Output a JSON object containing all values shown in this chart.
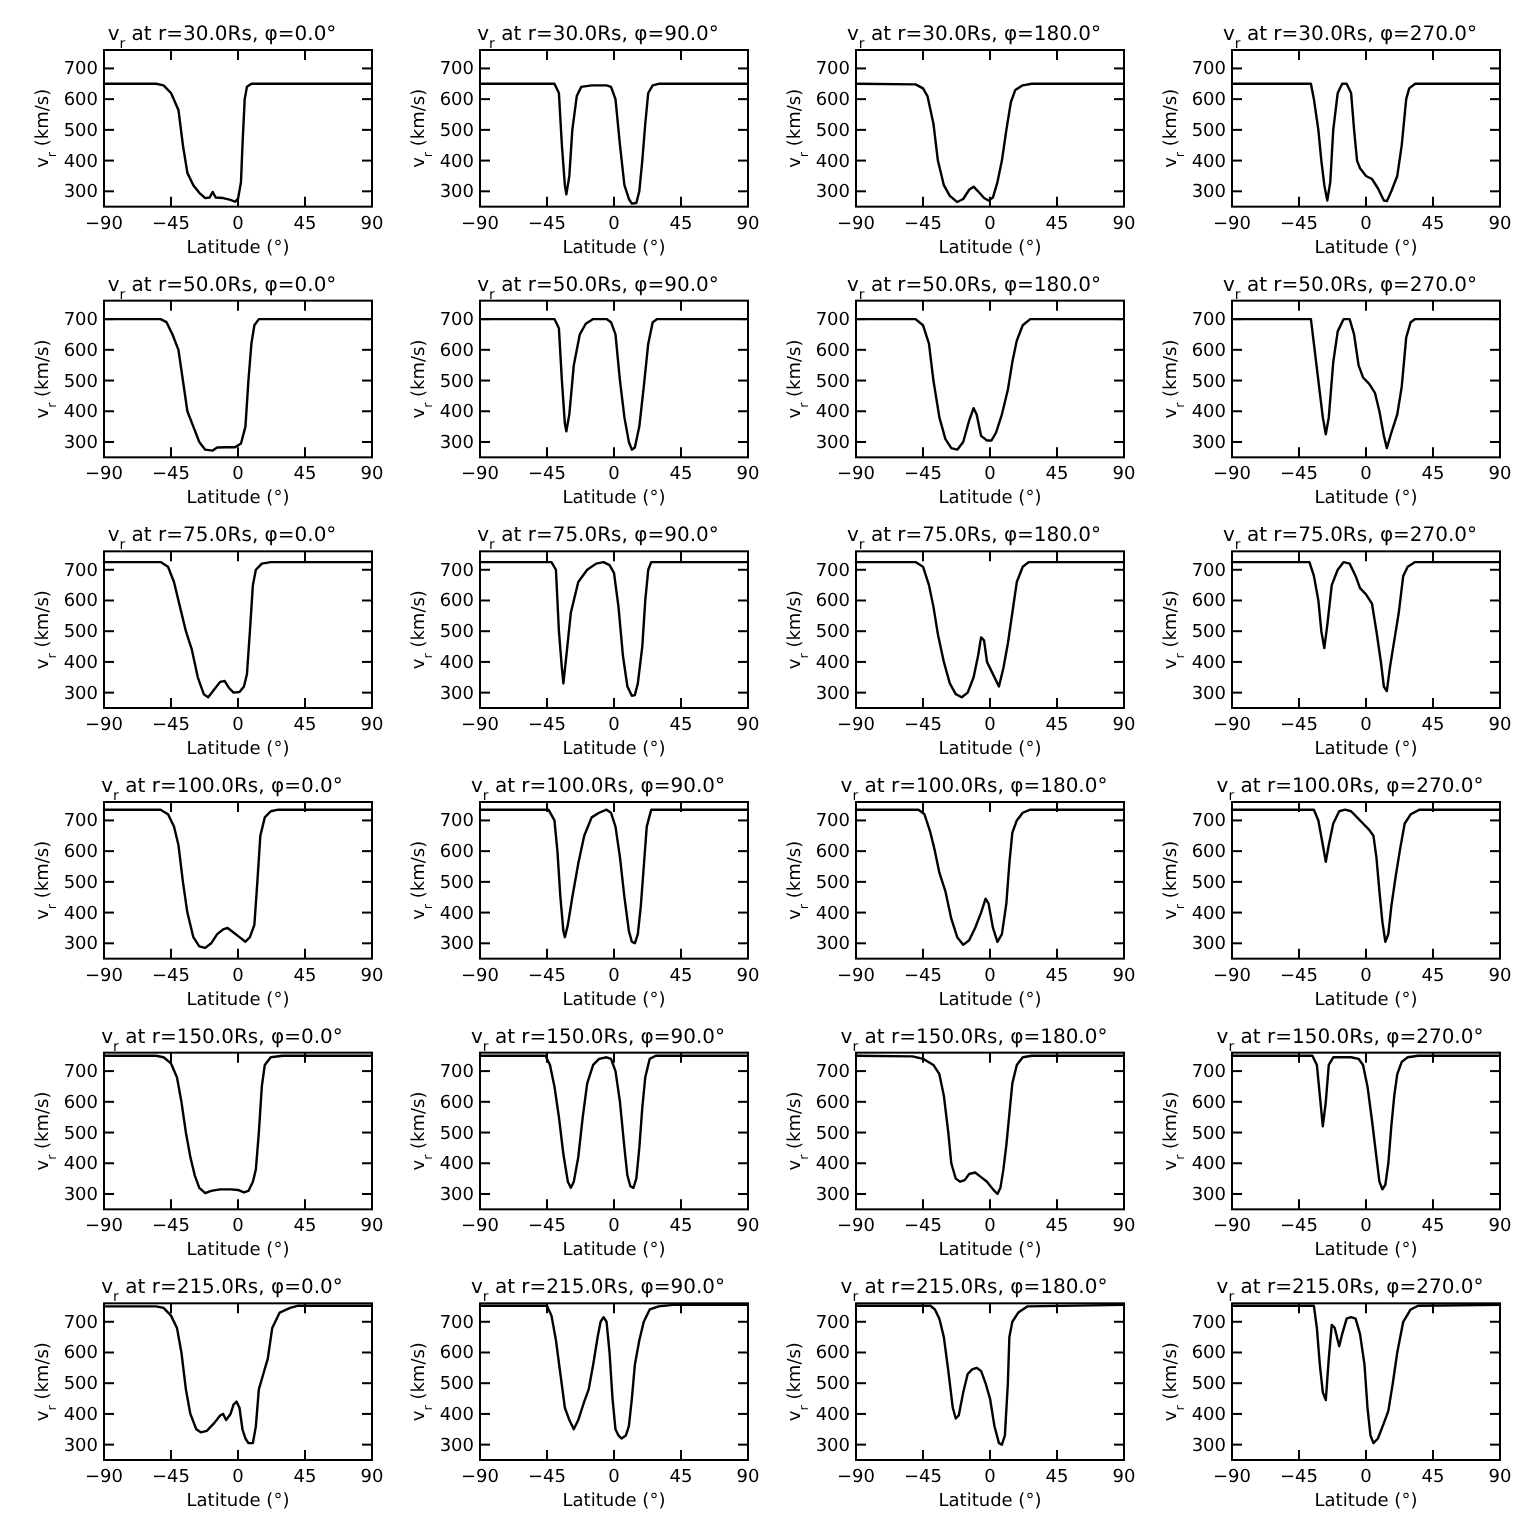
{
  "chart_data": [
    {
      "type": "line",
      "title": "v$_{r}$ at r=30.0Rs, φ=0.0°",
      "xlabel": "Latitude (°)",
      "ylabel": "v$_{r}$ (km/s)",
      "color": "#000000",
      "xlim": [
        -90,
        90
      ],
      "ylim": [
        250,
        760
      ],
      "xticks": [
        -90,
        -45,
        0,
        45,
        90
      ],
      "yticks": [
        300,
        400,
        500,
        600,
        700
      ],
      "x": [
        -90,
        -55,
        -50,
        -45,
        -40,
        -37,
        -34,
        -30,
        -26,
        -22,
        -19,
        -17,
        -15,
        -10,
        -5,
        -2,
        0,
        2,
        3,
        4.5,
        6,
        9,
        90
      ],
      "values": [
        650,
        650,
        645,
        620,
        565,
        450,
        360,
        320,
        295,
        278,
        280,
        298,
        280,
        278,
        272,
        266,
        275,
        330,
        450,
        600,
        640,
        650,
        650
      ]
    },
    {
      "type": "line",
      "title": "v$_{r}$ at r=30.0Rs, φ=90.0°",
      "xlabel": "Latitude (°)",
      "ylabel": "v$_{r}$ (km/s)",
      "color": "#000000",
      "xlim": [
        -90,
        90
      ],
      "ylim": [
        250,
        760
      ],
      "xticks": [
        -90,
        -45,
        0,
        45,
        90
      ],
      "yticks": [
        300,
        400,
        500,
        600,
        700
      ],
      "x": [
        -90,
        -40,
        -37,
        -35,
        -33,
        -32,
        -30,
        -28,
        -25,
        -22,
        -15,
        -5,
        -2,
        1,
        4,
        7,
        10,
        12,
        15,
        17,
        19,
        21,
        23,
        26,
        30,
        90
      ],
      "values": [
        650,
        650,
        620,
        450,
        320,
        290,
        350,
        500,
        610,
        640,
        645,
        645,
        640,
        600,
        450,
        320,
        275,
        260,
        262,
        300,
        400,
        520,
        620,
        645,
        650,
        650
      ]
    },
    {
      "type": "line",
      "title": "v$_{r}$ at r=30.0Rs, φ=180.0°",
      "xlabel": "Latitude (°)",
      "ylabel": "v$_{r}$ (km/s)",
      "color": "#000000",
      "xlim": [
        -90,
        90
      ],
      "ylim": [
        250,
        760
      ],
      "xticks": [
        -90,
        -45,
        0,
        45,
        90
      ],
      "yticks": [
        300,
        400,
        500,
        600,
        700
      ],
      "x": [
        -90,
        -50,
        -45,
        -42,
        -38,
        -35,
        -31,
        -27,
        -22,
        -18,
        -14,
        -11,
        -8,
        -4,
        -1,
        2,
        5,
        8,
        11,
        14,
        17,
        22,
        28,
        90
      ],
      "values": [
        650,
        648,
        635,
        610,
        520,
        400,
        320,
        285,
        265,
        275,
        305,
        315,
        300,
        278,
        270,
        280,
        330,
        400,
        500,
        590,
        630,
        645,
        650,
        650
      ]
    },
    {
      "type": "line",
      "title": "v$_{r}$ at r=30.0Rs, φ=270.0°",
      "xlabel": "Latitude (°)",
      "ylabel": "v$_{r}$ (km/s)",
      "color": "#000000",
      "xlim": [
        -90,
        90
      ],
      "ylim": [
        250,
        760
      ],
      "xticks": [
        -90,
        -45,
        0,
        45,
        90
      ],
      "yticks": [
        300,
        400,
        500,
        600,
        700
      ],
      "x": [
        -90,
        -37,
        -35,
        -32,
        -30,
        -28,
        -26,
        -24,
        -22,
        -19,
        -16,
        -13,
        -10,
        -8,
        -6,
        -4,
        0,
        4,
        8,
        12,
        14,
        17,
        21,
        24,
        27,
        29,
        33,
        90
      ],
      "values": [
        650,
        650,
        600,
        500,
        400,
        320,
        270,
        330,
        500,
        620,
        650,
        650,
        620,
        500,
        400,
        375,
        350,
        340,
        310,
        270,
        268,
        300,
        350,
        450,
        600,
        635,
        650,
        650
      ]
    },
    {
      "type": "line",
      "title": "v$_{r}$ at r=50.0Rs, φ=0.0°",
      "xlabel": "Latitude (°)",
      "ylabel": "v$_{r}$ (km/s)",
      "color": "#000000",
      "xlim": [
        -90,
        90
      ],
      "ylim": [
        250,
        760
      ],
      "xticks": [
        -90,
        -45,
        0,
        45,
        90
      ],
      "yticks": [
        300,
        400,
        500,
        600,
        700
      ],
      "x": [
        -90,
        -52,
        -48,
        -44,
        -40,
        -37,
        -34,
        -30,
        -26,
        -22,
        -17,
        -14,
        -8,
        -2,
        2,
        5,
        7,
        9,
        11,
        14,
        90
      ],
      "values": [
        700,
        700,
        690,
        650,
        600,
        500,
        400,
        350,
        300,
        275,
        272,
        282,
        283,
        283,
        295,
        350,
        500,
        620,
        680,
        700,
        700
      ]
    },
    {
      "type": "line",
      "title": "v$_{r}$ at r=50.0Rs, φ=90.0°",
      "xlabel": "Latitude (°)",
      "ylabel": "v$_{r}$ (km/s)",
      "color": "#000000",
      "xlim": [
        -90,
        90
      ],
      "ylim": [
        250,
        760
      ],
      "xticks": [
        -90,
        -45,
        0,
        45,
        90
      ],
      "yticks": [
        300,
        400,
        500,
        600,
        700
      ],
      "x": [
        -90,
        -40,
        -37,
        -35,
        -33,
        -32,
        -30,
        -27,
        -23,
        -19,
        -14,
        -5,
        -2,
        1,
        4,
        7,
        10,
        12,
        14,
        17,
        20,
        23,
        26,
        29,
        90
      ],
      "values": [
        700,
        700,
        670,
        500,
        360,
        335,
        390,
        550,
        650,
        685,
        700,
        700,
        690,
        650,
        500,
        380,
        300,
        275,
        282,
        350,
        480,
        620,
        690,
        700,
        700
      ]
    },
    {
      "type": "line",
      "title": "v$_{r}$ at r=50.0Rs, φ=180.0°",
      "xlabel": "Latitude (°)",
      "ylabel": "v$_{r}$ (km/s)",
      "color": "#000000",
      "xlim": [
        -90,
        90
      ],
      "ylim": [
        250,
        760
      ],
      "xticks": [
        -90,
        -45,
        0,
        45,
        90
      ],
      "yticks": [
        300,
        400,
        500,
        600,
        700
      ],
      "x": [
        -90,
        -50,
        -45,
        -41,
        -38,
        -34,
        -30,
        -26,
        -22,
        -18,
        -14,
        -11,
        -9,
        -6,
        -2,
        1,
        4,
        8,
        12,
        15,
        18,
        22,
        27,
        90
      ],
      "values": [
        700,
        700,
        680,
        620,
        500,
        380,
        310,
        280,
        275,
        300,
        370,
        410,
        390,
        320,
        305,
        305,
        330,
        390,
        470,
        560,
        630,
        680,
        700,
        700
      ]
    },
    {
      "type": "line",
      "title": "v$_{r}$ at r=50.0Rs, φ=270.0°",
      "xlabel": "Latitude (°)",
      "ylabel": "v$_{r}$ (km/s)",
      "color": "#000000",
      "xlim": [
        -90,
        90
      ],
      "ylim": [
        250,
        760
      ],
      "xticks": [
        -90,
        -45,
        0,
        45,
        90
      ],
      "yticks": [
        300,
        400,
        500,
        600,
        700
      ],
      "x": [
        -90,
        -37,
        -35,
        -32,
        -29,
        -27,
        -25,
        -22,
        -19,
        -15,
        -11,
        -8,
        -5,
        -2,
        2,
        6,
        9,
        12,
        14,
        17,
        21,
        24,
        27,
        30,
        33,
        90
      ],
      "values": [
        700,
        700,
        620,
        500,
        380,
        325,
        380,
        560,
        660,
        700,
        700,
        650,
        550,
        510,
        490,
        460,
        400,
        320,
        280,
        330,
        390,
        480,
        640,
        690,
        700,
        700
      ]
    },
    {
      "type": "line",
      "title": "v$_{r}$ at r=75.0Rs, φ=0.0°",
      "xlabel": "Latitude (°)",
      "ylabel": "v$_{r}$ (km/s)",
      "color": "#000000",
      "xlim": [
        -90,
        90
      ],
      "ylim": [
        250,
        760
      ],
      "xticks": [
        -90,
        -45,
        0,
        45,
        90
      ],
      "yticks": [
        300,
        400,
        500,
        600,
        700
      ],
      "x": [
        -90,
        -52,
        -47,
        -43,
        -39,
        -35,
        -31,
        -27,
        -23,
        -20,
        -16,
        -12,
        -9,
        -6,
        -3,
        1,
        4,
        6,
        8,
        10,
        12,
        16,
        22,
        90
      ],
      "values": [
        725,
        725,
        710,
        660,
        580,
        500,
        440,
        350,
        295,
        285,
        310,
        335,
        338,
        315,
        300,
        302,
        320,
        360,
        500,
        650,
        700,
        720,
        725,
        725
      ]
    },
    {
      "type": "line",
      "title": "v$_{r}$ at r=75.0Rs, φ=90.0°",
      "xlabel": "Latitude (°)",
      "ylabel": "v$_{r}$ (km/s)",
      "color": "#000000",
      "xlim": [
        -90,
        90
      ],
      "ylim": [
        250,
        760
      ],
      "xticks": [
        -90,
        -45,
        0,
        45,
        90
      ],
      "yticks": [
        300,
        400,
        500,
        600,
        700
      ],
      "x": [
        -90,
        -42,
        -39,
        -37,
        -35,
        -34,
        -32,
        -29,
        -24,
        -18,
        -12,
        -7,
        -3,
        0,
        3,
        6,
        9,
        12,
        14,
        16,
        19,
        21,
        23,
        25,
        90
      ],
      "values": [
        725,
        725,
        700,
        500,
        380,
        330,
        420,
        560,
        660,
        700,
        720,
        725,
        715,
        690,
        580,
        420,
        320,
        290,
        292,
        330,
        450,
        600,
        700,
        725,
        725
      ]
    },
    {
      "type": "line",
      "title": "v$_{r}$ at r=75.0Rs, φ=180.0°",
      "xlabel": "Latitude (°)",
      "ylabel": "v$_{r}$ (km/s)",
      "color": "#000000",
      "xlim": [
        -90,
        90
      ],
      "ylim": [
        250,
        760
      ],
      "xticks": [
        -90,
        -45,
        0,
        45,
        90
      ],
      "yticks": [
        300,
        400,
        500,
        600,
        700
      ],
      "x": [
        -90,
        -50,
        -45,
        -41,
        -38,
        -35,
        -31,
        -27,
        -23,
        -19,
        -15,
        -11,
        -8,
        -6,
        -4,
        -2,
        1,
        4,
        6,
        9,
        12,
        15,
        18,
        22,
        26,
        90
      ],
      "values": [
        725,
        725,
        710,
        650,
        580,
        490,
        400,
        330,
        295,
        285,
        300,
        350,
        420,
        480,
        470,
        400,
        370,
        340,
        320,
        380,
        460,
        560,
        660,
        710,
        725,
        725
      ]
    },
    {
      "type": "line",
      "title": "v$_{r}$ at r=75.0Rs, φ=270.0°",
      "xlabel": "Latitude (°)",
      "ylabel": "v$_{r}$ (km/s)",
      "color": "#000000",
      "xlim": [
        -90,
        90
      ],
      "ylim": [
        250,
        760
      ],
      "xticks": [
        -90,
        -45,
        0,
        45,
        90
      ],
      "yticks": [
        300,
        400,
        500,
        600,
        700
      ],
      "x": [
        -90,
        -38,
        -35,
        -32,
        -30,
        -28,
        -26,
        -23,
        -19,
        -15,
        -11,
        -7,
        -4,
        0,
        4,
        7,
        10,
        12,
        14,
        16,
        19,
        22,
        25,
        28,
        33,
        90
      ],
      "values": [
        725,
        725,
        680,
        600,
        500,
        445,
        520,
        650,
        700,
        725,
        720,
        680,
        640,
        620,
        590,
        500,
        400,
        320,
        305,
        380,
        470,
        560,
        680,
        710,
        725,
        725
      ]
    },
    {
      "type": "line",
      "title": "v$_{r}$ at r=100.0Rs, φ=0.0°",
      "xlabel": "Latitude (°)",
      "ylabel": "v$_{r}$ (km/s)",
      "color": "#000000",
      "xlim": [
        -90,
        90
      ],
      "ylim": [
        250,
        760
      ],
      "xticks": [
        -90,
        -45,
        0,
        45,
        90
      ],
      "yticks": [
        300,
        400,
        500,
        600,
        700
      ],
      "x": [
        -90,
        -52,
        -47,
        -43,
        -40,
        -37,
        -34,
        -30,
        -26,
        -22,
        -18,
        -14,
        -10,
        -7,
        -3,
        1,
        5,
        8,
        11,
        13,
        15,
        18,
        22,
        27,
        90
      ],
      "values": [
        735,
        735,
        720,
        680,
        620,
        500,
        400,
        320,
        290,
        285,
        300,
        330,
        345,
        350,
        335,
        320,
        305,
        320,
        360,
        500,
        650,
        710,
        730,
        735,
        735
      ]
    },
    {
      "type": "line",
      "title": "v$_{r}$ at r=100.0Rs, φ=90.0°",
      "xlabel": "Latitude (°)",
      "ylabel": "v$_{r}$ (km/s)",
      "color": "#000000",
      "xlim": [
        -90,
        90
      ],
      "ylim": [
        250,
        760
      ],
      "xticks": [
        -90,
        -45,
        0,
        45,
        90
      ],
      "yticks": [
        300,
        400,
        500,
        600,
        700
      ],
      "x": [
        -90,
        -44,
        -40,
        -38,
        -36,
        -34,
        -33,
        -31,
        -28,
        -24,
        -20,
        -15,
        -10,
        -5,
        -2,
        1,
        4,
        7,
        10,
        12,
        14,
        16,
        18,
        20,
        22,
        25,
        90
      ],
      "values": [
        735,
        735,
        700,
        600,
        450,
        340,
        320,
        360,
        450,
        560,
        650,
        710,
        725,
        735,
        725,
        680,
        580,
        450,
        340,
        305,
        300,
        330,
        420,
        550,
        680,
        735,
        735
      ]
    },
    {
      "type": "line",
      "title": "v$_{r}$ at r=100.0Rs, φ=180.0°",
      "xlabel": "Latitude (°)",
      "ylabel": "v$_{r}$ (km/s)",
      "color": "#000000",
      "xlim": [
        -90,
        90
      ],
      "ylim": [
        250,
        760
      ],
      "xticks": [
        -90,
        -45,
        0,
        45,
        90
      ],
      "yticks": [
        300,
        400,
        500,
        600,
        700
      ],
      "x": [
        -90,
        -48,
        -44,
        -40,
        -37,
        -34,
        -30,
        -26,
        -22,
        -18,
        -14,
        -10,
        -6,
        -3,
        -1,
        2,
        5,
        8,
        11,
        13,
        15,
        18,
        22,
        27,
        90
      ],
      "values": [
        735,
        735,
        720,
        660,
        600,
        530,
        470,
        380,
        320,
        295,
        310,
        350,
        400,
        445,
        430,
        350,
        305,
        330,
        430,
        560,
        660,
        700,
        725,
        735,
        735
      ]
    },
    {
      "type": "line",
      "title": "v$_{r}$ at r=100.0Rs, φ=270.0°",
      "xlabel": "Latitude (°)",
      "ylabel": "v$_{r}$ (km/s)",
      "color": "#000000",
      "xlim": [
        -90,
        90
      ],
      "ylim": [
        250,
        760
      ],
      "xticks": [
        -90,
        -45,
        0,
        45,
        90
      ],
      "yticks": [
        300,
        400,
        500,
        600,
        700
      ],
      "x": [
        -90,
        -35,
        -32,
        -29,
        -27,
        -25,
        -22,
        -18,
        -14,
        -10,
        -6,
        -2,
        2,
        5,
        7,
        9,
        11,
        13,
        15,
        17,
        20,
        23,
        26,
        30,
        36,
        90
      ],
      "values": [
        735,
        735,
        700,
        620,
        565,
        620,
        690,
        730,
        735,
        730,
        710,
        690,
        670,
        650,
        580,
        470,
        370,
        305,
        330,
        420,
        520,
        610,
        690,
        720,
        735,
        735
      ]
    },
    {
      "type": "line",
      "title": "v$_{r}$ at r=150.0Rs, φ=0.0°",
      "xlabel": "Latitude (°)",
      "ylabel": "v$_{r}$ (km/s)",
      "color": "#000000",
      "xlim": [
        -90,
        90
      ],
      "ylim": [
        250,
        760
      ],
      "xticks": [
        -90,
        -45,
        0,
        45,
        90
      ],
      "yticks": [
        300,
        400,
        500,
        600,
        700
      ],
      "x": [
        -90,
        -55,
        -50,
        -45,
        -41,
        -38,
        -35,
        -32,
        -29,
        -26,
        -22,
        -18,
        -12,
        -5,
        0,
        4,
        7,
        10,
        12,
        14,
        16,
        18,
        22,
        30,
        90
      ],
      "values": [
        750,
        750,
        745,
        725,
        680,
        600,
        500,
        420,
        360,
        320,
        303,
        310,
        315,
        315,
        313,
        305,
        310,
        340,
        380,
        500,
        650,
        720,
        745,
        750,
        750
      ]
    },
    {
      "type": "line",
      "title": "v$_{r}$ at r=150.0Rs, φ=90.0°",
      "xlabel": "Latitude (°)",
      "ylabel": "v$_{r}$ (km/s)",
      "color": "#000000",
      "xlim": [
        -90,
        90
      ],
      "ylim": [
        250,
        760
      ],
      "xticks": [
        -90,
        -45,
        0,
        45,
        90
      ],
      "yticks": [
        300,
        400,
        500,
        600,
        700
      ],
      "x": [
        -90,
        -46,
        -43,
        -40,
        -37,
        -34,
        -31,
        -29,
        -27,
        -24,
        -21,
        -18,
        -14,
        -10,
        -5,
        -2,
        1,
        4,
        7,
        9,
        11,
        13,
        15,
        17,
        19,
        21,
        24,
        28,
        90
      ],
      "values": [
        750,
        750,
        720,
        650,
        550,
        430,
        340,
        320,
        340,
        420,
        550,
        660,
        720,
        740,
        745,
        740,
        700,
        600,
        450,
        360,
        325,
        320,
        350,
        450,
        580,
        680,
        740,
        750,
        750
      ]
    },
    {
      "type": "line",
      "title": "v$_{r}$ at r=150.0Rs, φ=180.0°",
      "xlabel": "Latitude (°)",
      "ylabel": "v$_{r}$ (km/s)",
      "color": "#000000",
      "xlim": [
        -90,
        90
      ],
      "ylim": [
        250,
        760
      ],
      "xticks": [
        -90,
        -45,
        0,
        45,
        90
      ],
      "yticks": [
        300,
        400,
        500,
        600,
        700
      ],
      "x": [
        -90,
        -52,
        -45,
        -38,
        -34,
        -31,
        -28,
        -26,
        -23,
        -20,
        -17,
        -14,
        -10,
        -6,
        -2,
        2,
        5,
        7,
        9,
        11,
        13,
        15,
        18,
        22,
        28,
        90
      ],
      "values": [
        750,
        748,
        740,
        720,
        690,
        620,
        500,
        400,
        350,
        340,
        345,
        365,
        370,
        355,
        340,
        315,
        300,
        320,
        380,
        460,
        560,
        660,
        720,
        745,
        750,
        750
      ]
    },
    {
      "type": "line",
      "title": "v$_{r}$ at r=150.0Rs, φ=270.0°",
      "xlabel": "Latitude (°)",
      "ylabel": "v$_{r}$ (km/s)",
      "color": "#000000",
      "xlim": [
        -90,
        90
      ],
      "ylim": [
        250,
        760
      ],
      "xticks": [
        -90,
        -45,
        0,
        45,
        90
      ],
      "yticks": [
        300,
        400,
        500,
        600,
        700
      ],
      "x": [
        -90,
        -36,
        -33,
        -31,
        -29,
        -27,
        -25,
        -22,
        -10,
        -5,
        -2,
        1,
        4,
        7,
        9,
        11,
        13,
        15,
        17,
        19,
        21,
        24,
        28,
        35,
        90
      ],
      "values": [
        750,
        750,
        720,
        620,
        520,
        600,
        720,
        745,
        745,
        740,
        720,
        650,
        540,
        420,
        340,
        315,
        330,
        400,
        520,
        620,
        690,
        730,
        745,
        750,
        750
      ]
    },
    {
      "type": "line",
      "title": "v$_{r}$ at r=215.0Rs, φ=0.0°",
      "xlabel": "Latitude (°)",
      "ylabel": "v$_{r}$ (km/s)",
      "color": "#000000",
      "xlim": [
        -90,
        90
      ],
      "ylim": [
        250,
        760
      ],
      "xticks": [
        -90,
        -45,
        0,
        45,
        90
      ],
      "yticks": [
        300,
        400,
        500,
        600,
        700
      ],
      "x": [
        -90,
        -55,
        -50,
        -45,
        -41,
        -38,
        -35,
        -32,
        -28,
        -25,
        -21,
        -16,
        -12,
        -10,
        -8,
        -5,
        -3,
        -1,
        1,
        3,
        5,
        7,
        10,
        12,
        14,
        17,
        20,
        23,
        28,
        35,
        40,
        90
      ],
      "values": [
        750,
        750,
        745,
        720,
        680,
        600,
        480,
        400,
        350,
        340,
        345,
        370,
        395,
        400,
        380,
        400,
        430,
        440,
        420,
        350,
        320,
        305,
        305,
        360,
        480,
        530,
        580,
        680,
        730,
        745,
        752,
        752
      ]
    },
    {
      "type": "line",
      "title": "v$_{r}$ at r=215.0Rs, φ=90.0°",
      "xlabel": "Latitude (°)",
      "ylabel": "v$_{r}$ (km/s)",
      "color": "#000000",
      "xlim": [
        -90,
        90
      ],
      "ylim": [
        250,
        760
      ],
      "xticks": [
        -90,
        -45,
        0,
        45,
        90
      ],
      "yticks": [
        300,
        400,
        500,
        600,
        700
      ],
      "x": [
        -90,
        -45,
        -42,
        -39,
        -36,
        -33,
        -30,
        -27,
        -24,
        -20,
        -17,
        -14,
        -11,
        -9,
        -7,
        -5,
        -3,
        -1,
        1,
        3,
        5,
        8,
        10,
        12,
        14,
        17,
        20,
        24,
        30,
        40,
        90
      ],
      "values": [
        752,
        752,
        720,
        640,
        530,
        420,
        380,
        350,
        380,
        440,
        480,
        560,
        650,
        700,
        715,
        700,
        600,
        450,
        350,
        330,
        320,
        330,
        360,
        450,
        560,
        640,
        700,
        740,
        750,
        755,
        755
      ]
    },
    {
      "type": "line",
      "title": "v$_{r}$ at r=215.0Rs, φ=180.0°",
      "xlabel": "Latitude (°)",
      "ylabel": "v$_{r}$ (km/s)",
      "color": "#000000",
      "xlim": [
        -90,
        90
      ],
      "ylim": [
        250,
        760
      ],
      "xticks": [
        -90,
        -45,
        0,
        45,
        90
      ],
      "yticks": [
        300,
        400,
        500,
        600,
        700
      ],
      "x": [
        -90,
        -40,
        -37,
        -34,
        -31,
        -28,
        -25,
        -23,
        -21,
        -18,
        -15,
        -12,
        -9,
        -6,
        -3,
        0,
        3,
        6,
        8,
        10,
        12,
        13,
        15,
        19,
        25,
        90
      ],
      "values": [
        752,
        752,
        740,
        710,
        650,
        540,
        420,
        385,
        395,
        470,
        530,
        545,
        550,
        540,
        500,
        450,
        360,
        305,
        300,
        330,
        500,
        650,
        700,
        730,
        750,
        755
      ]
    },
    {
      "type": "line",
      "title": "v$_{r}$ at r=215.0Rs, φ=270.0°",
      "xlabel": "Latitude (°)",
      "ylabel": "v$_{r}$ (km/s)",
      "color": "#000000",
      "xlim": [
        -90,
        90
      ],
      "ylim": [
        250,
        760
      ],
      "xticks": [
        -90,
        -45,
        0,
        45,
        90
      ],
      "yticks": [
        300,
        400,
        500,
        600,
        700
      ],
      "x": [
        -90,
        -35,
        -33,
        -31,
        -29,
        -27,
        -25,
        -23,
        -21,
        -19,
        -18,
        -16,
        -13,
        -10,
        -7,
        -4,
        -1,
        1,
        3,
        5,
        8,
        12,
        15,
        18,
        21,
        25,
        30,
        35,
        90
      ],
      "values": [
        752,
        752,
        680,
        560,
        470,
        445,
        580,
        690,
        680,
        640,
        620,
        660,
        710,
        715,
        710,
        660,
        560,
        420,
        330,
        305,
        320,
        370,
        410,
        500,
        600,
        700,
        740,
        752,
        755
      ]
    }
  ]
}
